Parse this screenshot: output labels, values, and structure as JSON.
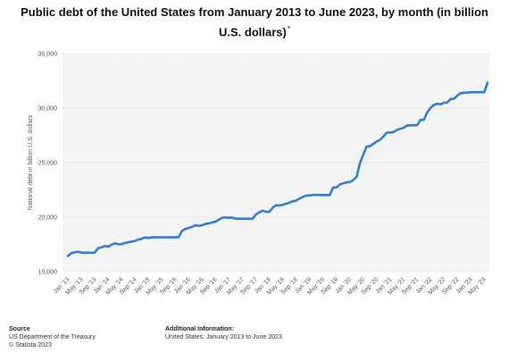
{
  "chart_data": {
    "type": "line",
    "title_line1": "Public debt of the United States from January 2013 to June 2023, by month (in billion",
    "title_line2": "U.S. dollars)",
    "title_mark": "*",
    "xlabel": "",
    "ylabel": "National debt in billion U.S. dollars",
    "ylim": [
      15000,
      35000
    ],
    "yticks": [
      15000,
      20000,
      25000,
      30000,
      35000
    ],
    "ytick_labels": [
      "15,000",
      "20,000",
      "25,000",
      "30,000",
      "35,000"
    ],
    "xtick_labels": [
      "Jan '13",
      "May '13",
      "Sep '13",
      "Jan '14",
      "May '14",
      "Sep '14",
      "Jan '15",
      "May '15",
      "Sep '15",
      "Jan '16",
      "May '16",
      "Sep '16",
      "Jan '17",
      "May '17",
      "Sep '17",
      "Jan '18",
      "May '18",
      "Sep '18",
      "Jan '19",
      "May '19",
      "Sep '19",
      "Jan '20",
      "May '20",
      "Sep '20",
      "Jan '21",
      "May '21",
      "Sep '21",
      "Jan '22",
      "May '22",
      "Sep '22",
      "Jan '23",
      "May '23"
    ],
    "grid": true,
    "legend": "none",
    "line_color": "#2f7ed8",
    "series": [
      {
        "x": [
          "Jan '13",
          "Feb '13",
          "Mar '13",
          "Apr '13",
          "May '13",
          "Jun '13",
          "Jul '13",
          "Aug '13",
          "Sep '13",
          "Oct '13",
          "Nov '13",
          "Dec '13",
          "Jan '14",
          "Feb '14",
          "Mar '14",
          "Apr '14",
          "May '14",
          "Jun '14",
          "Jul '14",
          "Aug '14",
          "Sep '14",
          "Oct '14",
          "Nov '14",
          "Dec '14",
          "Jan '15",
          "Feb '15",
          "Mar '15",
          "Apr '15",
          "May '15",
          "Jun '15",
          "Jul '15",
          "Aug '15",
          "Sep '15",
          "Oct '15",
          "Nov '15",
          "Dec '15",
          "Jan '16",
          "Feb '16",
          "Mar '16",
          "Apr '16",
          "May '16",
          "Jun '16",
          "Jul '16",
          "Aug '16",
          "Sep '16",
          "Oct '16",
          "Nov '16",
          "Dec '16",
          "Jan '17",
          "Feb '17",
          "Mar '17",
          "Apr '17",
          "May '17",
          "Jun '17",
          "Jul '17",
          "Aug '17",
          "Sep '17",
          "Oct '17",
          "Nov '17",
          "Dec '17",
          "Jan '18",
          "Feb '18",
          "Mar '18",
          "Apr '18",
          "May '18",
          "Jun '18",
          "Jul '18",
          "Aug '18",
          "Sep '18",
          "Oct '18",
          "Nov '18",
          "Dec '18",
          "Jan '19",
          "Feb '19",
          "Mar '19",
          "Apr '19",
          "May '19",
          "Jun '19",
          "Jul '19",
          "Aug '19",
          "Sep '19",
          "Oct '19",
          "Nov '19",
          "Dec '19",
          "Jan '20",
          "Feb '20",
          "Mar '20",
          "Apr '20",
          "May '20",
          "Jun '20",
          "Jul '20",
          "Aug '20",
          "Sep '20",
          "Oct '20",
          "Nov '20",
          "Dec '20",
          "Jan '21",
          "Feb '21",
          "Mar '21",
          "Apr '21",
          "May '21",
          "Jun '21",
          "Jul '21",
          "Aug '21",
          "Sep '21",
          "Oct '21",
          "Nov '21",
          "Dec '21",
          "Jan '22",
          "Feb '22",
          "Mar '22",
          "Apr '22",
          "May '22",
          "Jun '22",
          "Jul '22",
          "Aug '22",
          "Sep '22",
          "Oct '22",
          "Nov '22",
          "Dec '22",
          "Jan '23",
          "Feb '23",
          "Mar '23",
          "Apr '23",
          "May '23",
          "Jun '23"
        ],
        "values": [
          16430,
          16690,
          16770,
          16830,
          16740,
          16740,
          16740,
          16740,
          16740,
          17160,
          17220,
          17350,
          17290,
          17460,
          17600,
          17510,
          17520,
          17630,
          17690,
          17760,
          17820,
          17940,
          18010,
          18140,
          18080,
          18160,
          18150,
          18150,
          18150,
          18150,
          18150,
          18150,
          18150,
          18150,
          18750,
          18920,
          19010,
          19110,
          19260,
          19190,
          19260,
          19380,
          19430,
          19510,
          19580,
          19770,
          19950,
          19980,
          19940,
          19960,
          19850,
          19850,
          19850,
          19850,
          19850,
          19850,
          20240,
          20440,
          20590,
          20490,
          20490,
          20860,
          21090,
          21070,
          21140,
          21220,
          21330,
          21460,
          21520,
          21700,
          21850,
          21970,
          21980,
          22050,
          22030,
          22030,
          22020,
          22030,
          22020,
          22720,
          22720,
          23000,
          23100,
          23200,
          23220,
          23400,
          23700,
          24970,
          25750,
          26480,
          26510,
          26730,
          26950,
          27100,
          27400,
          27750,
          27760,
          27800,
          28000,
          28100,
          28200,
          28400,
          28430,
          28430,
          28430,
          28920,
          28920,
          29600,
          30010,
          30290,
          30400,
          30350,
          30500,
          30500,
          30840,
          30860,
          31150,
          31370,
          31420,
          31420,
          31460,
          31460,
          31460,
          31460,
          31460,
          32330
        ]
      }
    ]
  },
  "footer": {
    "source_heading": "Source",
    "source_line1": "US Department of the Treasury",
    "source_line2": "© Statista 2023",
    "info_heading": "Additional Information:",
    "info_line1": "United States; January 2013 to June 2023"
  }
}
